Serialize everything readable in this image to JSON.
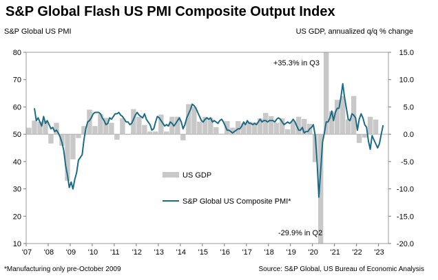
{
  "title": "S&P Global Flash US PMI Composite Output Index",
  "footnote": "*Manufacturing only pre-October 2009",
  "source": "Source: S&P Global, US Bureau of Economic Analysis",
  "chart_data": {
    "type": "bar+line",
    "ylabel_left": "S&P Global US PMI",
    "ylabel_right": "US GDP, annualized q/q % change",
    "ylim_left": [
      10,
      80
    ],
    "ylim_right": [
      -20,
      15
    ],
    "yticks_left": [
      "80",
      "70",
      "60",
      "50",
      "40",
      "30",
      "20",
      "10"
    ],
    "yticks_right": [
      "15.0",
      "10.0",
      "5.0",
      "0.0",
      "-5.0",
      "-10.0",
      "-15.0",
      "-20.0"
    ],
    "xlim": [
      2007.0,
      2023.45
    ],
    "xticks": [
      "'07",
      "'08",
      "'09",
      "'10",
      "'11",
      "'12",
      "'13",
      "'14",
      "'15",
      "'16",
      "'17",
      "'18",
      "'19",
      "'20",
      "'21",
      "'22",
      "'23"
    ],
    "grid": false,
    "legend": [
      {
        "label": "US GDP",
        "kind": "bar",
        "color": "#c8c8c8"
      },
      {
        "label": "S&P Global US Composite PMI*",
        "kind": "line",
        "color": "#1a6b85"
      }
    ],
    "annotations": [
      "+35.3% in Q3",
      "-29.9% in Q2"
    ],
    "gdp": {
      "name": "US GDP",
      "color": "#c8c8c8",
      "quarters": [
        "2007Q1",
        "2007Q2",
        "2007Q3",
        "2007Q4",
        "2008Q1",
        "2008Q2",
        "2008Q3",
        "2008Q4",
        "2009Q1",
        "2009Q2",
        "2009Q3",
        "2009Q4",
        "2010Q1",
        "2010Q2",
        "2010Q3",
        "2010Q4",
        "2011Q1",
        "2011Q2",
        "2011Q3",
        "2011Q4",
        "2012Q1",
        "2012Q2",
        "2012Q3",
        "2012Q4",
        "2013Q1",
        "2013Q2",
        "2013Q3",
        "2013Q4",
        "2014Q1",
        "2014Q2",
        "2014Q3",
        "2014Q4",
        "2015Q1",
        "2015Q2",
        "2015Q3",
        "2015Q4",
        "2016Q1",
        "2016Q2",
        "2016Q3",
        "2016Q4",
        "2017Q1",
        "2017Q2",
        "2017Q3",
        "2017Q4",
        "2018Q1",
        "2018Q2",
        "2018Q3",
        "2018Q4",
        "2019Q1",
        "2019Q2",
        "2019Q3",
        "2019Q4",
        "2020Q1",
        "2020Q2",
        "2020Q3",
        "2020Q4",
        "2021Q1",
        "2021Q2",
        "2021Q3",
        "2021Q4",
        "2022Q1",
        "2022Q2",
        "2022Q3",
        "2022Q4"
      ],
      "values": [
        1.2,
        2.5,
        2.3,
        2.5,
        -1.7,
        2.1,
        -2.1,
        -8.5,
        -4.6,
        -0.7,
        1.5,
        4.5,
        1.5,
        3.7,
        3.0,
        2.1,
        -1.0,
        2.9,
        -0.1,
        4.6,
        3.2,
        1.7,
        0.5,
        0.5,
        3.6,
        0.5,
        3.2,
        3.2,
        -1.1,
        5.5,
        5.0,
        2.3,
        3.2,
        3.0,
        1.3,
        0.1,
        2.4,
        1.2,
        2.4,
        2.0,
        2.3,
        2.2,
        2.9,
        3.9,
        3.3,
        2.1,
        2.9,
        0.9,
        2.4,
        3.2,
        2.8,
        1.9,
        -5.1,
        -29.9,
        35.3,
        4.2,
        6.3,
        7.0,
        2.7,
        7.0,
        -1.6,
        -0.6,
        3.2,
        2.7
      ]
    },
    "pmi": {
      "name": "S&P Global US Composite PMI*",
      "color": "#1a6b85",
      "points": [
        [
          "2007-05",
          59.5
        ],
        [
          "2007-06",
          55.0
        ],
        [
          "2007-07",
          56.0
        ],
        [
          "2007-08",
          54.5
        ],
        [
          "2007-09",
          53.0
        ],
        [
          "2007-10",
          56.5
        ],
        [
          "2007-11",
          54.0
        ],
        [
          "2007-12",
          55.0
        ],
        [
          "2008-01",
          53.5
        ],
        [
          "2008-02",
          52.0
        ],
        [
          "2008-03",
          52.5
        ],
        [
          "2008-04",
          51.0
        ],
        [
          "2008-05",
          51.5
        ],
        [
          "2008-06",
          50.5
        ],
        [
          "2008-07",
          49.0
        ],
        [
          "2008-08",
          47.0
        ],
        [
          "2008-09",
          44.0
        ],
        [
          "2008-10",
          38.5
        ],
        [
          "2008-11",
          35.0
        ],
        [
          "2008-12",
          30.5
        ],
        [
          "2009-01",
          32.5
        ],
        [
          "2009-02",
          30.0
        ],
        [
          "2009-03",
          33.5
        ],
        [
          "2009-04",
          36.0
        ],
        [
          "2009-05",
          40.5
        ],
        [
          "2009-06",
          41.5
        ],
        [
          "2009-07",
          42.5
        ],
        [
          "2009-08",
          48.0
        ],
        [
          "2009-09",
          52.0
        ],
        [
          "2009-10",
          54.5
        ],
        [
          "2009-11",
          55.0
        ],
        [
          "2009-12",
          56.0
        ],
        [
          "2010-01",
          57.5
        ],
        [
          "2010-02",
          58.0
        ],
        [
          "2010-03",
          58.0
        ],
        [
          "2010-04",
          58.0
        ],
        [
          "2010-05",
          57.5
        ],
        [
          "2010-06",
          56.0
        ],
        [
          "2010-07",
          55.0
        ],
        [
          "2010-08",
          53.5
        ],
        [
          "2010-09",
          54.0
        ],
        [
          "2010-10",
          56.0
        ],
        [
          "2010-11",
          55.5
        ],
        [
          "2010-12",
          56.5
        ],
        [
          "2011-01",
          57.5
        ],
        [
          "2011-02",
          57.5
        ],
        [
          "2011-03",
          58.0
        ],
        [
          "2011-04",
          57.0
        ],
        [
          "2011-05",
          56.5
        ],
        [
          "2011-06",
          55.5
        ],
        [
          "2011-07",
          54.5
        ],
        [
          "2011-08",
          54.5
        ],
        [
          "2011-09",
          53.5
        ],
        [
          "2011-10",
          54.0
        ],
        [
          "2011-11",
          55.5
        ],
        [
          "2011-12",
          57.0
        ],
        [
          "2012-01",
          58.0
        ],
        [
          "2012-02",
          57.0
        ],
        [
          "2012-03",
          56.5
        ],
        [
          "2012-04",
          56.0
        ],
        [
          "2012-05",
          57.5
        ],
        [
          "2012-06",
          55.5
        ],
        [
          "2012-07",
          54.5
        ],
        [
          "2012-08",
          53.5
        ],
        [
          "2012-09",
          51.5
        ],
        [
          "2012-10",
          52.0
        ],
        [
          "2012-11",
          54.5
        ],
        [
          "2012-12",
          56.5
        ],
        [
          "2013-01",
          56.0
        ],
        [
          "2013-02",
          55.0
        ],
        [
          "2013-03",
          54.0
        ],
        [
          "2013-04",
          53.0
        ],
        [
          "2013-05",
          53.5
        ],
        [
          "2013-06",
          53.0
        ],
        [
          "2013-07",
          54.5
        ],
        [
          "2013-08",
          54.0
        ],
        [
          "2013-09",
          53.0
        ],
        [
          "2013-10",
          54.0
        ],
        [
          "2013-11",
          55.0
        ],
        [
          "2013-12",
          56.0
        ],
        [
          "2014-01",
          54.5
        ],
        [
          "2014-02",
          52.0
        ],
        [
          "2014-03",
          53.5
        ],
        [
          "2014-04",
          56.0
        ],
        [
          "2014-05",
          57.5
        ],
        [
          "2014-06",
          59.0
        ],
        [
          "2014-07",
          61.0
        ],
        [
          "2014-08",
          60.5
        ],
        [
          "2014-09",
          59.5
        ],
        [
          "2014-10",
          58.0
        ],
        [
          "2014-11",
          56.5
        ],
        [
          "2014-12",
          55.0
        ],
        [
          "2015-01",
          54.5
        ],
        [
          "2015-02",
          55.5
        ],
        [
          "2015-03",
          56.0
        ],
        [
          "2015-04",
          55.5
        ],
        [
          "2015-05",
          56.0
        ],
        [
          "2015-06",
          54.5
        ],
        [
          "2015-07",
          55.0
        ],
        [
          "2015-08",
          54.5
        ],
        [
          "2015-09",
          54.0
        ],
        [
          "2015-10",
          55.0
        ],
        [
          "2015-11",
          55.5
        ],
        [
          "2015-12",
          54.5
        ],
        [
          "2016-01",
          53.0
        ],
        [
          "2016-02",
          51.5
        ],
        [
          "2016-03",
          51.5
        ],
        [
          "2016-04",
          51.0
        ],
        [
          "2016-05",
          50.5
        ],
        [
          "2016-06",
          51.0
        ],
        [
          "2016-07",
          51.5
        ],
        [
          "2016-08",
          52.0
        ],
        [
          "2016-09",
          52.0
        ],
        [
          "2016-10",
          53.0
        ],
        [
          "2016-11",
          54.5
        ],
        [
          "2016-12",
          53.5
        ],
        [
          "2017-01",
          55.0
        ],
        [
          "2017-02",
          54.0
        ],
        [
          "2017-03",
          54.0
        ],
        [
          "2017-04",
          53.5
        ],
        [
          "2017-05",
          54.0
        ],
        [
          "2017-06",
          53.5
        ],
        [
          "2017-07",
          54.5
        ],
        [
          "2017-08",
          55.5
        ],
        [
          "2017-09",
          54.5
        ],
        [
          "2017-10",
          55.0
        ],
        [
          "2017-11",
          55.0
        ],
        [
          "2017-12",
          54.5
        ],
        [
          "2018-01",
          55.0
        ],
        [
          "2018-02",
          55.0
        ],
        [
          "2018-03",
          55.0
        ],
        [
          "2018-04",
          54.5
        ],
        [
          "2018-05",
          55.5
        ],
        [
          "2018-06",
          56.0
        ],
        [
          "2018-07",
          55.5
        ],
        [
          "2018-08",
          54.5
        ],
        [
          "2018-09",
          53.5
        ],
        [
          "2018-10",
          54.0
        ],
        [
          "2018-11",
          54.5
        ],
        [
          "2018-12",
          54.0
        ],
        [
          "2019-01",
          54.5
        ],
        [
          "2019-02",
          55.5
        ],
        [
          "2019-03",
          54.5
        ],
        [
          "2019-04",
          53.0
        ],
        [
          "2019-05",
          51.5
        ],
        [
          "2019-06",
          51.5
        ],
        [
          "2019-07",
          52.5
        ],
        [
          "2019-08",
          50.5
        ],
        [
          "2019-09",
          51.0
        ],
        [
          "2019-10",
          51.0
        ],
        [
          "2019-11",
          52.0
        ],
        [
          "2019-12",
          52.5
        ],
        [
          "2020-01",
          53.5
        ],
        [
          "2020-02",
          49.5
        ],
        [
          "2020-03",
          40.5
        ],
        [
          "2020-04",
          27.0
        ],
        [
          "2020-05",
          37.0
        ],
        [
          "2020-06",
          47.0
        ],
        [
          "2020-07",
          50.5
        ],
        [
          "2020-08",
          54.5
        ],
        [
          "2020-09",
          54.5
        ],
        [
          "2020-10",
          56.0
        ],
        [
          "2020-11",
          58.5
        ],
        [
          "2020-12",
          55.0
        ],
        [
          "2021-01",
          58.0
        ],
        [
          "2021-02",
          59.5
        ],
        [
          "2021-03",
          59.5
        ],
        [
          "2021-04",
          63.5
        ],
        [
          "2021-05",
          68.5
        ],
        [
          "2021-06",
          63.5
        ],
        [
          "2021-07",
          59.5
        ],
        [
          "2021-08",
          55.5
        ],
        [
          "2021-09",
          55.0
        ],
        [
          "2021-10",
          57.5
        ],
        [
          "2021-11",
          57.0
        ],
        [
          "2021-12",
          56.0
        ],
        [
          "2022-01",
          51.5
        ],
        [
          "2022-02",
          55.5
        ],
        [
          "2022-03",
          57.5
        ],
        [
          "2022-04",
          56.0
        ],
        [
          "2022-05",
          53.5
        ],
        [
          "2022-06",
          52.5
        ],
        [
          "2022-07",
          47.5
        ],
        [
          "2022-08",
          44.5
        ],
        [
          "2022-09",
          49.5
        ],
        [
          "2022-10",
          48.0
        ],
        [
          "2022-11",
          46.5
        ],
        [
          "2022-12",
          45.0
        ],
        [
          "2023-01",
          46.5
        ],
        [
          "2023-02",
          50.0
        ],
        [
          "2023-03",
          53.3
        ]
      ]
    }
  }
}
